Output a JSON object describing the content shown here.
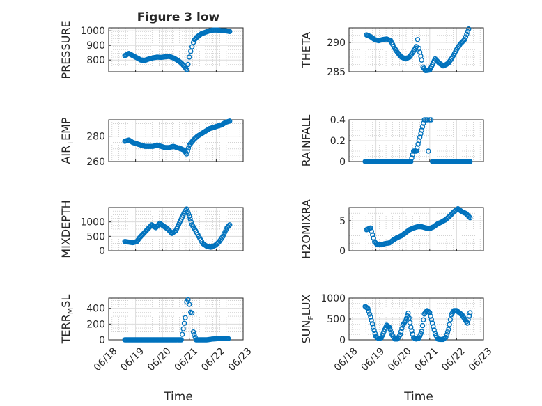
{
  "figure": {
    "title": "Figure 3 low",
    "colors": {
      "marker": "#0072BD",
      "axis": "#262626",
      "grid": "#b8b8b8",
      "background": "#ffffff"
    },
    "x_tick_labels": [
      "06/18",
      "06/19",
      "06/20",
      "06/21",
      "06/22",
      "06/23"
    ],
    "x_label": "Time"
  },
  "chart_data": [
    {
      "type": "scatter",
      "title": "Figure 3 low",
      "ylabel": "PRESSURE",
      "xlim": [
        0,
        5
      ],
      "ylim": [
        720,
        1020
      ],
      "yticks": [
        800,
        900,
        1000
      ],
      "x_ticklabels_shown": false,
      "grid": true,
      "x": [
        0.6,
        0.75,
        0.9,
        1.05,
        1.2,
        1.35,
        1.5,
        1.65,
        1.8,
        1.95,
        2.1,
        2.25,
        2.4,
        2.55,
        2.7,
        2.8,
        2.9,
        2.95,
        3.0,
        3.05,
        3.1,
        3.15,
        3.2,
        3.3,
        3.45,
        3.6,
        3.75,
        3.9,
        4.05,
        4.2,
        4.35,
        4.5
      ],
      "y": [
        830,
        845,
        830,
        815,
        800,
        798,
        808,
        815,
        820,
        818,
        822,
        825,
        815,
        800,
        780,
        760,
        735,
        770,
        820,
        860,
        890,
        920,
        940,
        960,
        980,
        990,
        1000,
        1005,
        1005,
        1000,
        1000,
        995
      ]
    },
    {
      "type": "scatter",
      "ylabel": "THETA",
      "xlim": [
        0,
        5
      ],
      "ylim": [
        285,
        292.5
      ],
      "yticks": [
        285,
        290
      ],
      "x_ticklabels_shown": false,
      "grid": true,
      "x": [
        0.65,
        0.8,
        0.95,
        1.1,
        1.25,
        1.4,
        1.55,
        1.7,
        1.8,
        1.95,
        2.1,
        2.25,
        2.4,
        2.5,
        2.55,
        2.6,
        2.7,
        2.75,
        2.85,
        3.0,
        3.1,
        3.2,
        3.35,
        3.5,
        3.6,
        3.7,
        3.85,
        4.0,
        4.15,
        4.3,
        4.45
      ],
      "y": [
        291.3,
        291.0,
        290.5,
        290.3,
        290.5,
        290.6,
        290.3,
        289.0,
        288.3,
        287.5,
        287.2,
        287.5,
        288.5,
        289.3,
        290.5,
        289.0,
        287.0,
        285.8,
        285.2,
        285.3,
        286.2,
        287.2,
        286.5,
        286.0,
        286.2,
        286.5,
        287.5,
        288.8,
        289.8,
        290.5,
        292.3
      ]
    },
    {
      "type": "scatter",
      "ylabel": "AIR_TEMP",
      "xlim": [
        0,
        5
      ],
      "ylim": [
        260,
        293
      ],
      "yticks": [
        260,
        280
      ],
      "x_ticklabels_shown": false,
      "grid": true,
      "x": [
        0.6,
        0.75,
        0.9,
        1.05,
        1.2,
        1.35,
        1.5,
        1.65,
        1.8,
        1.95,
        2.1,
        2.25,
        2.4,
        2.55,
        2.7,
        2.8,
        2.9,
        3.0,
        3.15,
        3.3,
        3.45,
        3.6,
        3.75,
        3.9,
        4.05,
        4.2,
        4.35,
        4.5
      ],
      "y": [
        276,
        277,
        275,
        274,
        273,
        272,
        272,
        272,
        273,
        272,
        271,
        271,
        272,
        271,
        270,
        269,
        266,
        273,
        277,
        280,
        282,
        284,
        286,
        287,
        288,
        289,
        291,
        292
      ]
    },
    {
      "type": "scatter",
      "ylabel": "RAINFALL",
      "xlim": [
        0,
        5
      ],
      "ylim": [
        0,
        0.4
      ],
      "yticks": [
        0,
        0.2,
        0.4
      ],
      "x_ticklabels_shown": false,
      "grid": true,
      "x": [
        0.6,
        0.9,
        1.2,
        1.5,
        1.8,
        2.1,
        2.3,
        2.4,
        2.5,
        2.6,
        2.7,
        2.8,
        2.85,
        2.9,
        2.95,
        3.0,
        3.05,
        3.1,
        3.2,
        3.4,
        3.6,
        3.8,
        4.0,
        4.2,
        4.4,
        4.5
      ],
      "y": [
        0,
        0,
        0,
        0,
        0,
        0,
        0,
        0.1,
        0.1,
        0.2,
        0.3,
        0.4,
        0.4,
        0.4,
        0.1,
        0.4,
        0.4,
        0,
        0,
        0,
        0,
        0,
        0,
        0,
        0,
        0
      ]
    },
    {
      "type": "scatter",
      "ylabel": "MIXDEPTH",
      "xlim": [
        0,
        5
      ],
      "ylim": [
        0,
        1500
      ],
      "yticks": [
        0,
        500,
        1000
      ],
      "x_ticklabels_shown": false,
      "grid": true,
      "x": [
        0.6,
        0.75,
        0.9,
        1.05,
        1.15,
        1.3,
        1.45,
        1.6,
        1.75,
        1.9,
        2.05,
        2.2,
        2.35,
        2.5,
        2.6,
        2.7,
        2.8,
        2.9,
        3.0,
        3.1,
        3.2,
        3.35,
        3.5,
        3.65,
        3.8,
        3.95,
        4.1,
        4.25,
        4.4,
        4.5
      ],
      "y": [
        320,
        300,
        280,
        320,
        450,
        600,
        750,
        900,
        800,
        950,
        850,
        750,
        600,
        700,
        900,
        1100,
        1300,
        1450,
        1200,
        900,
        750,
        500,
        250,
        150,
        120,
        180,
        300,
        500,
        800,
        900
      ]
    },
    {
      "type": "scatter",
      "ylabel": "H2OMIXRA",
      "xlim": [
        0,
        5
      ],
      "ylim": [
        0,
        7.2
      ],
      "yticks": [
        0,
        5
      ],
      "x_ticklabels_shown": false,
      "grid": true,
      "x": [
        0.65,
        0.8,
        0.95,
        1.05,
        1.2,
        1.35,
        1.5,
        1.65,
        1.8,
        1.95,
        2.1,
        2.25,
        2.4,
        2.55,
        2.7,
        2.85,
        3.0,
        3.15,
        3.3,
        3.45,
        3.6,
        3.75,
        3.9,
        4.05,
        4.2,
        4.35,
        4.5
      ],
      "y": [
        3.5,
        3.8,
        1.5,
        1.0,
        1.0,
        1.2,
        1.3,
        1.8,
        2.2,
        2.5,
        3.0,
        3.5,
        3.8,
        4.0,
        4.0,
        3.8,
        3.7,
        4.0,
        4.5,
        4.8,
        5.2,
        5.8,
        6.5,
        7.0,
        6.5,
        6.2,
        5.5
      ]
    },
    {
      "type": "scatter",
      "ylabel": "TERR_MSL",
      "xlim": [
        0,
        5
      ],
      "ylim": [
        0,
        530
      ],
      "yticks": [
        0,
        200,
        400
      ],
      "x_ticklabels_shown": true,
      "grid": true,
      "x": [
        0.6,
        0.9,
        1.2,
        1.5,
        1.8,
        2.1,
        2.4,
        2.7,
        2.85,
        2.9,
        2.95,
        3.0,
        3.05,
        3.1,
        3.15,
        3.25,
        3.45,
        3.65,
        3.85,
        4.05,
        4.25,
        4.45
      ],
      "y": [
        0,
        0,
        0,
        0,
        0,
        0,
        0,
        0,
        280,
        480,
        510,
        450,
        350,
        340,
        100,
        0,
        0,
        0,
        10,
        15,
        20,
        15
      ]
    },
    {
      "type": "scatter",
      "ylabel": "SUN_FLUX",
      "xlim": [
        0,
        5
      ],
      "ylim": [
        0,
        1000
      ],
      "yticks": [
        0,
        500,
        1000
      ],
      "x_ticklabels_shown": true,
      "grid": true,
      "x": [
        0.6,
        0.7,
        0.8,
        0.9,
        1.0,
        1.1,
        1.2,
        1.3,
        1.4,
        1.5,
        1.6,
        1.7,
        1.8,
        1.9,
        2.0,
        2.1,
        2.2,
        2.3,
        2.4,
        2.5,
        2.6,
        2.7,
        2.8,
        2.9,
        3.0,
        3.1,
        3.2,
        3.3,
        3.4,
        3.5,
        3.6,
        3.7,
        3.8,
        3.9,
        4.0,
        4.1,
        4.2,
        4.3,
        4.4,
        4.5
      ],
      "y": [
        800,
        750,
        550,
        300,
        80,
        30,
        50,
        200,
        350,
        300,
        120,
        20,
        20,
        120,
        350,
        450,
        640,
        300,
        50,
        20,
        40,
        200,
        620,
        700,
        650,
        400,
        150,
        20,
        10,
        10,
        60,
        250,
        600,
        700,
        700,
        650,
        600,
        500,
        400,
        650
      ]
    }
  ]
}
